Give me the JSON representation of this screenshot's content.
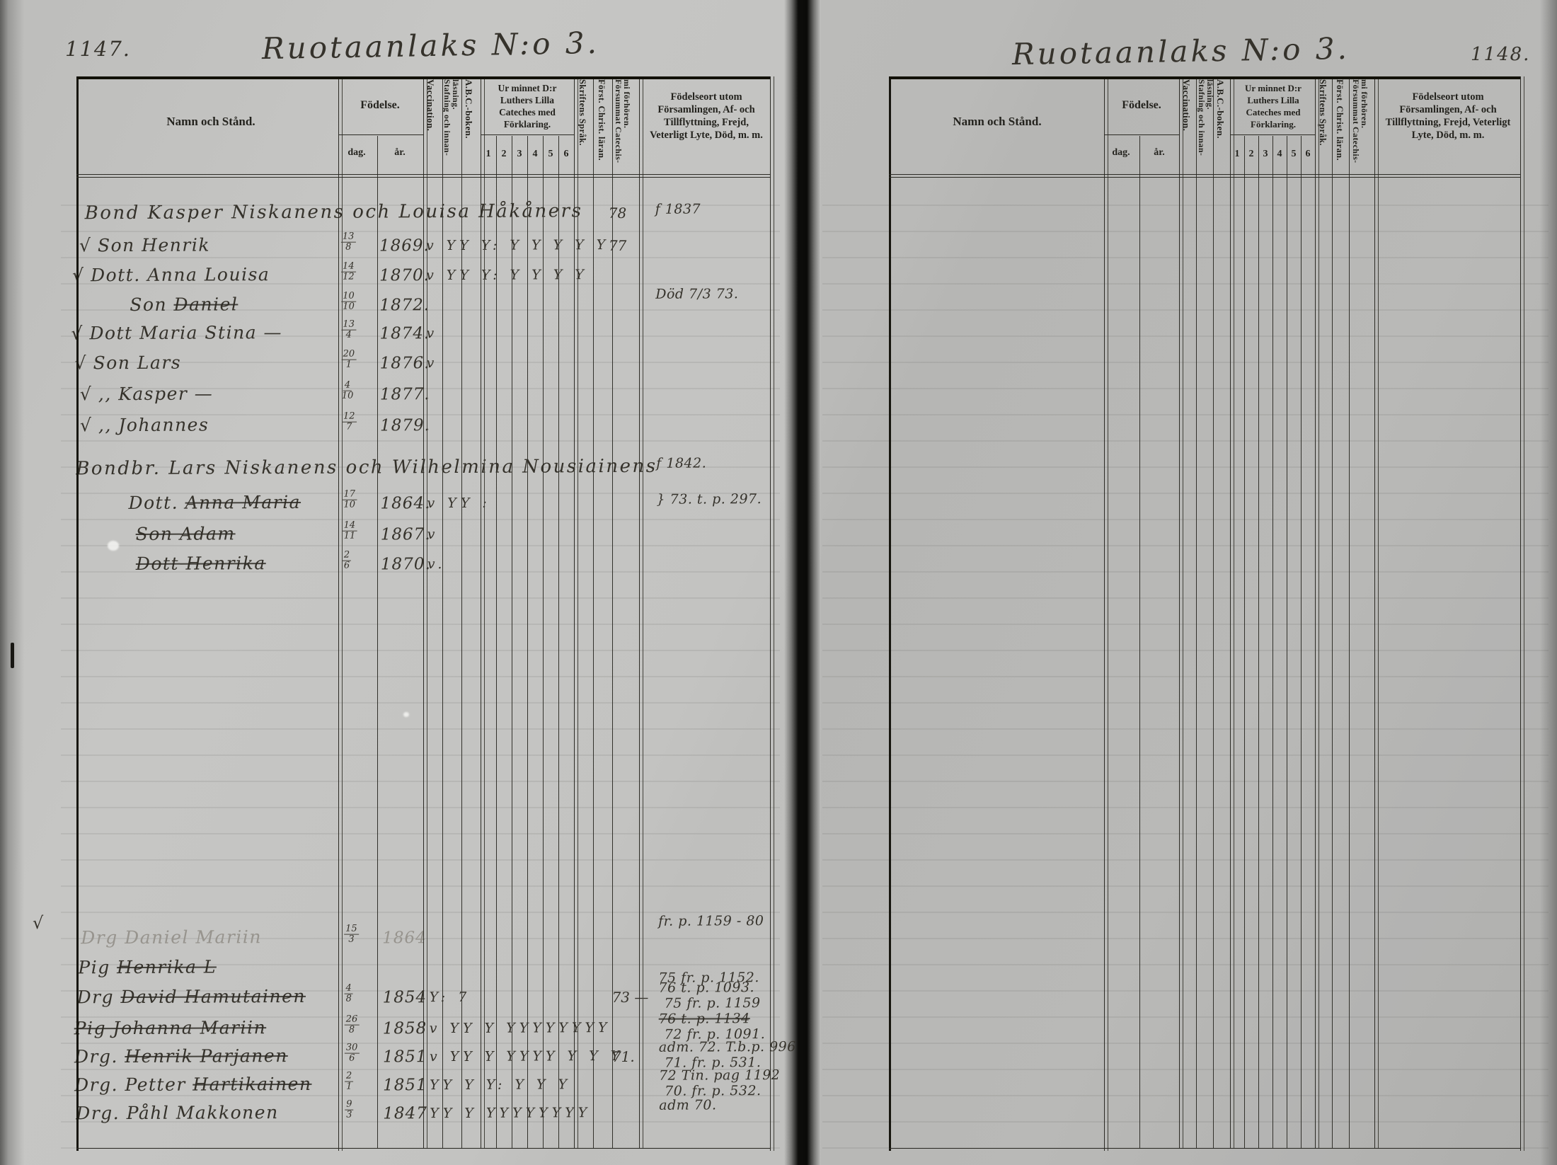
{
  "pages": {
    "left": {
      "page_number": "1147.",
      "title": "Ruotaanlaks N:o 3."
    },
    "right": {
      "page_number": "1148.",
      "title": "Ruotaanlaks N:o 3."
    }
  },
  "header": {
    "name": "Namn och Stånd.",
    "birth": "Födelse.",
    "birth_day": "dag.",
    "birth_year": "år.",
    "vaccination": "Vaccination.",
    "spelling": "Stafning och innan- läsning.",
    "abc_book": "A.B.C.-boken.",
    "catechism": "Ur minnet D:r Luthers Lilla Cateches med Förklaring.",
    "catechism_columns": [
      "1",
      "2",
      "3",
      "4",
      "5",
      "6"
    ],
    "scripture_language": "Skriftens Språk.",
    "christianity": "Först. Christ. läran.",
    "missed_exams": "Försummat Catechis- mi förhören.",
    "remarks": "Födelseort utom Församlingen, Af- och Tillflyttning, Frejd, Veterligt Lyte, Död, m. m."
  },
  "margin_mark": "√",
  "entries": [
    {
      "pre": "Bond Kasper Niskanens och Louisa Håkåners",
      "missed": "78",
      "note": "f 1837"
    },
    {
      "check": "√",
      "pre": "Son Henrik",
      "day": "13/8",
      "year": "1869.",
      "marks": "v YY Y: Y Y Y Y Y",
      "missed": "77"
    },
    {
      "check": "√",
      "pre": "Dott. Anna Louisa",
      "day": "14/12",
      "year": "1870.",
      "marks": "v YY Y: Y Y Y Y"
    },
    {
      "pre": "Son ",
      "struck": "Daniel",
      "day": "10/10",
      "year": "1872.",
      "note": "Död 7/3 73."
    },
    {
      "check": "√",
      "pre": "Dott Maria Stina —",
      "day": "13/4",
      "year": "1874.",
      "marks": "v"
    },
    {
      "check": "√",
      "pre": "Son Lars",
      "day": "20/1",
      "year": "1876.",
      "marks": "v"
    },
    {
      "check": "√",
      "pre": ",,    Kasper —",
      "day": "4/10",
      "year": "1877."
    },
    {
      "check": "√",
      "pre": ",,    Johannes",
      "day": "12/7",
      "year": "1879."
    },
    {
      "pre": "Bondbr. Lars Niskanens och Wilhelmina Nousiainens",
      "note": "f 1842."
    },
    {
      "pre": "Dott. ",
      "struck": "Anna Maria",
      "day": "17/10",
      "year": "1864.",
      "marks": "v YY :",
      "note": "} 73. t. p. 297."
    },
    {
      "struck": "Son Adam",
      "day": "14/11",
      "year": "1867.",
      "marks": "v"
    },
    {
      "struck": "Dott Henrika",
      "day": "2/6",
      "year": "1870.",
      "marks": "v."
    },
    {
      "pre": "Drg Daniel Mariin",
      "day": "15/3",
      "year": "1864",
      "pencil": true,
      "note": "fr. p. 1159 - 80"
    },
    {
      "pre": "Pig ",
      "struck": "Henrika L",
      "note": "75 fr. p. 1152."
    },
    {
      "pre": "Drg ",
      "struck": "David Hamutainen",
      "day": "4/8",
      "year": "1854",
      "marks": "Y: 7",
      "missed": "73 —",
      "note": "76 t. p. 1093.",
      "note2": "75 fr. p. 1159"
    },
    {
      "struck": "Pig Johanna Mariin",
      "day": "26/8",
      "year": "1858",
      "marks": "v YY Y YYYYYYYY",
      "note": "76 t. p. 1134",
      "note_struck": true,
      "note2": "72 fr. p. 1091."
    },
    {
      "pre": "Drg. ",
      "struck": "Henrik Parjanen",
      "day": "30/6",
      "year": "1851",
      "marks": "v YY Y YYYY Y Y Y",
      "missed": "71.",
      "note": "adm. 72. T.b.p. 996",
      "note2": "71. fr. p. 531."
    },
    {
      "pre": "Drg. Petter ",
      "struck": "Hartikainen",
      "day": "2/1",
      "year": "1851",
      "marks": "YY Y Y: Y Y Y",
      "note": "72 Tin. pag 1192",
      "note2": "70. fr. p. 532."
    },
    {
      "pre": "Drg. Påhl Makkonen",
      "day": "9/3",
      "year": "1847",
      "marks": "YY Y YYYYYYYY",
      "note": "adm 70."
    }
  ]
}
